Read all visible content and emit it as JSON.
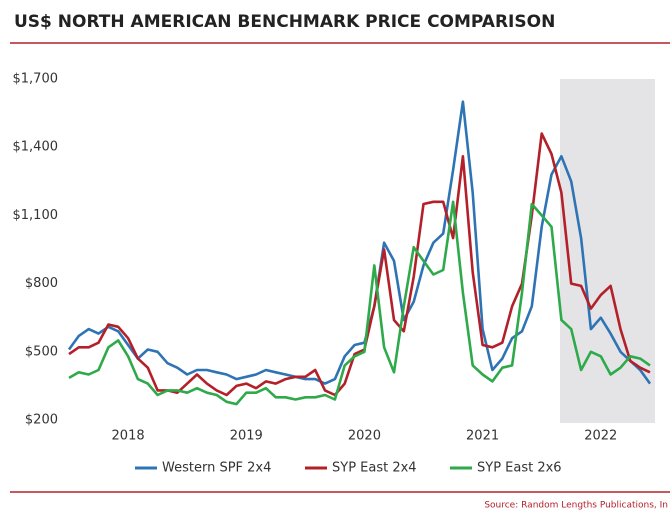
{
  "chart_data": {
    "type": "line",
    "title": "US$ NORTH AMERICAN BENCHMARK PRICE COMPARISON",
    "source": "Source: Random Lengths Publications, In",
    "categories": [
      null,
      null,
      null,
      null,
      null,
      null,
      "2018",
      null,
      null,
      null,
      null,
      null,
      null,
      null,
      null,
      null,
      null,
      null,
      "2019",
      null,
      null,
      null,
      null,
      null,
      null,
      null,
      null,
      null,
      null,
      null,
      "2020",
      null,
      null,
      null,
      null,
      null,
      null,
      null,
      null,
      null,
      null,
      null,
      "2021",
      null,
      null,
      null,
      null,
      null,
      null,
      null,
      null,
      null,
      null,
      null,
      "2022",
      null,
      null,
      null,
      null,
      null
    ],
    "series": [
      {
        "name": "Western SPF 2x4",
        "color": "#2e74b5",
        "values": [
          510,
          570,
          600,
          580,
          610,
          590,
          530,
          470,
          510,
          500,
          450,
          430,
          400,
          420,
          420,
          410,
          400,
          380,
          390,
          400,
          420,
          410,
          400,
          390,
          380,
          380,
          360,
          380,
          480,
          530,
          540,
          700,
          980,
          900,
          640,
          720,
          880,
          980,
          1020,
          1300,
          1600,
          1200,
          600,
          420,
          470,
          560,
          590,
          700,
          1050,
          1280,
          1360,
          1250,
          1000,
          600,
          650,
          580,
          500,
          460,
          420,
          360
        ]
      },
      {
        "name": "SYP East 2x4",
        "color": "#b3202a",
        "values": [
          490,
          520,
          520,
          540,
          620,
          610,
          560,
          470,
          430,
          330,
          330,
          320,
          360,
          400,
          360,
          330,
          310,
          350,
          360,
          340,
          370,
          360,
          380,
          390,
          390,
          420,
          330,
          310,
          360,
          490,
          510,
          700,
          950,
          640,
          590,
          830,
          1150,
          1160,
          1160,
          1000,
          1360,
          850,
          530,
          520,
          540,
          700,
          800,
          1100,
          1460,
          1370,
          1200,
          800,
          790,
          690,
          750,
          790,
          600,
          460,
          430,
          410
        ]
      },
      {
        "name": "SYP East 2x6",
        "color": "#2eaa4a",
        "values": [
          385,
          410,
          400,
          420,
          520,
          550,
          480,
          380,
          360,
          310,
          330,
          330,
          320,
          340,
          320,
          310,
          280,
          270,
          320,
          320,
          340,
          300,
          300,
          290,
          300,
          300,
          310,
          290,
          440,
          480,
          500,
          880,
          520,
          410,
          700,
          960,
          900,
          840,
          860,
          1160,
          760,
          440,
          400,
          370,
          430,
          440,
          760,
          1150,
          1100,
          1050,
          640,
          600,
          420,
          500,
          480,
          400,
          430,
          480,
          470,
          440
        ]
      }
    ],
    "ylim": [
      200,
      1700
    ],
    "yticks": [
      {
        "value": 200,
        "label": "$200"
      },
      {
        "value": 500,
        "label": "$500"
      },
      {
        "value": 800,
        "label": "$800"
      },
      {
        "value": 1100,
        "label": "$1,100"
      },
      {
        "value": 1400,
        "label": "$1,400"
      },
      {
        "value": 1700,
        "label": "$1,700"
      }
    ],
    "grid": false
  }
}
